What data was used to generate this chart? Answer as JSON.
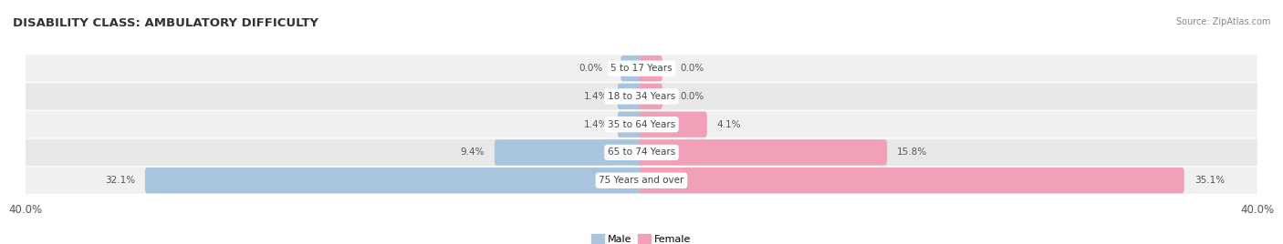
{
  "title": "DISABILITY CLASS: AMBULATORY DIFFICULTY",
  "source": "Source: ZipAtlas.com",
  "categories": [
    "5 to 17 Years",
    "18 to 34 Years",
    "35 to 64 Years",
    "65 to 74 Years",
    "75 Years and over"
  ],
  "male_values": [
    0.0,
    1.4,
    1.4,
    9.4,
    32.1
  ],
  "female_values": [
    0.0,
    0.0,
    4.1,
    15.8,
    35.1
  ],
  "max_val": 40.0,
  "male_color": "#a8c4df",
  "female_color": "#f2a0b8",
  "row_colors": [
    "#f0f0f0",
    "#e8e8e8",
    "#f0f0f0",
    "#e8e8e8",
    "#f0f0f0"
  ],
  "title_fontsize": 9.5,
  "label_fontsize": 7.5,
  "tick_fontsize": 8.5,
  "bar_height": 0.62,
  "min_bar_display": 1.5
}
